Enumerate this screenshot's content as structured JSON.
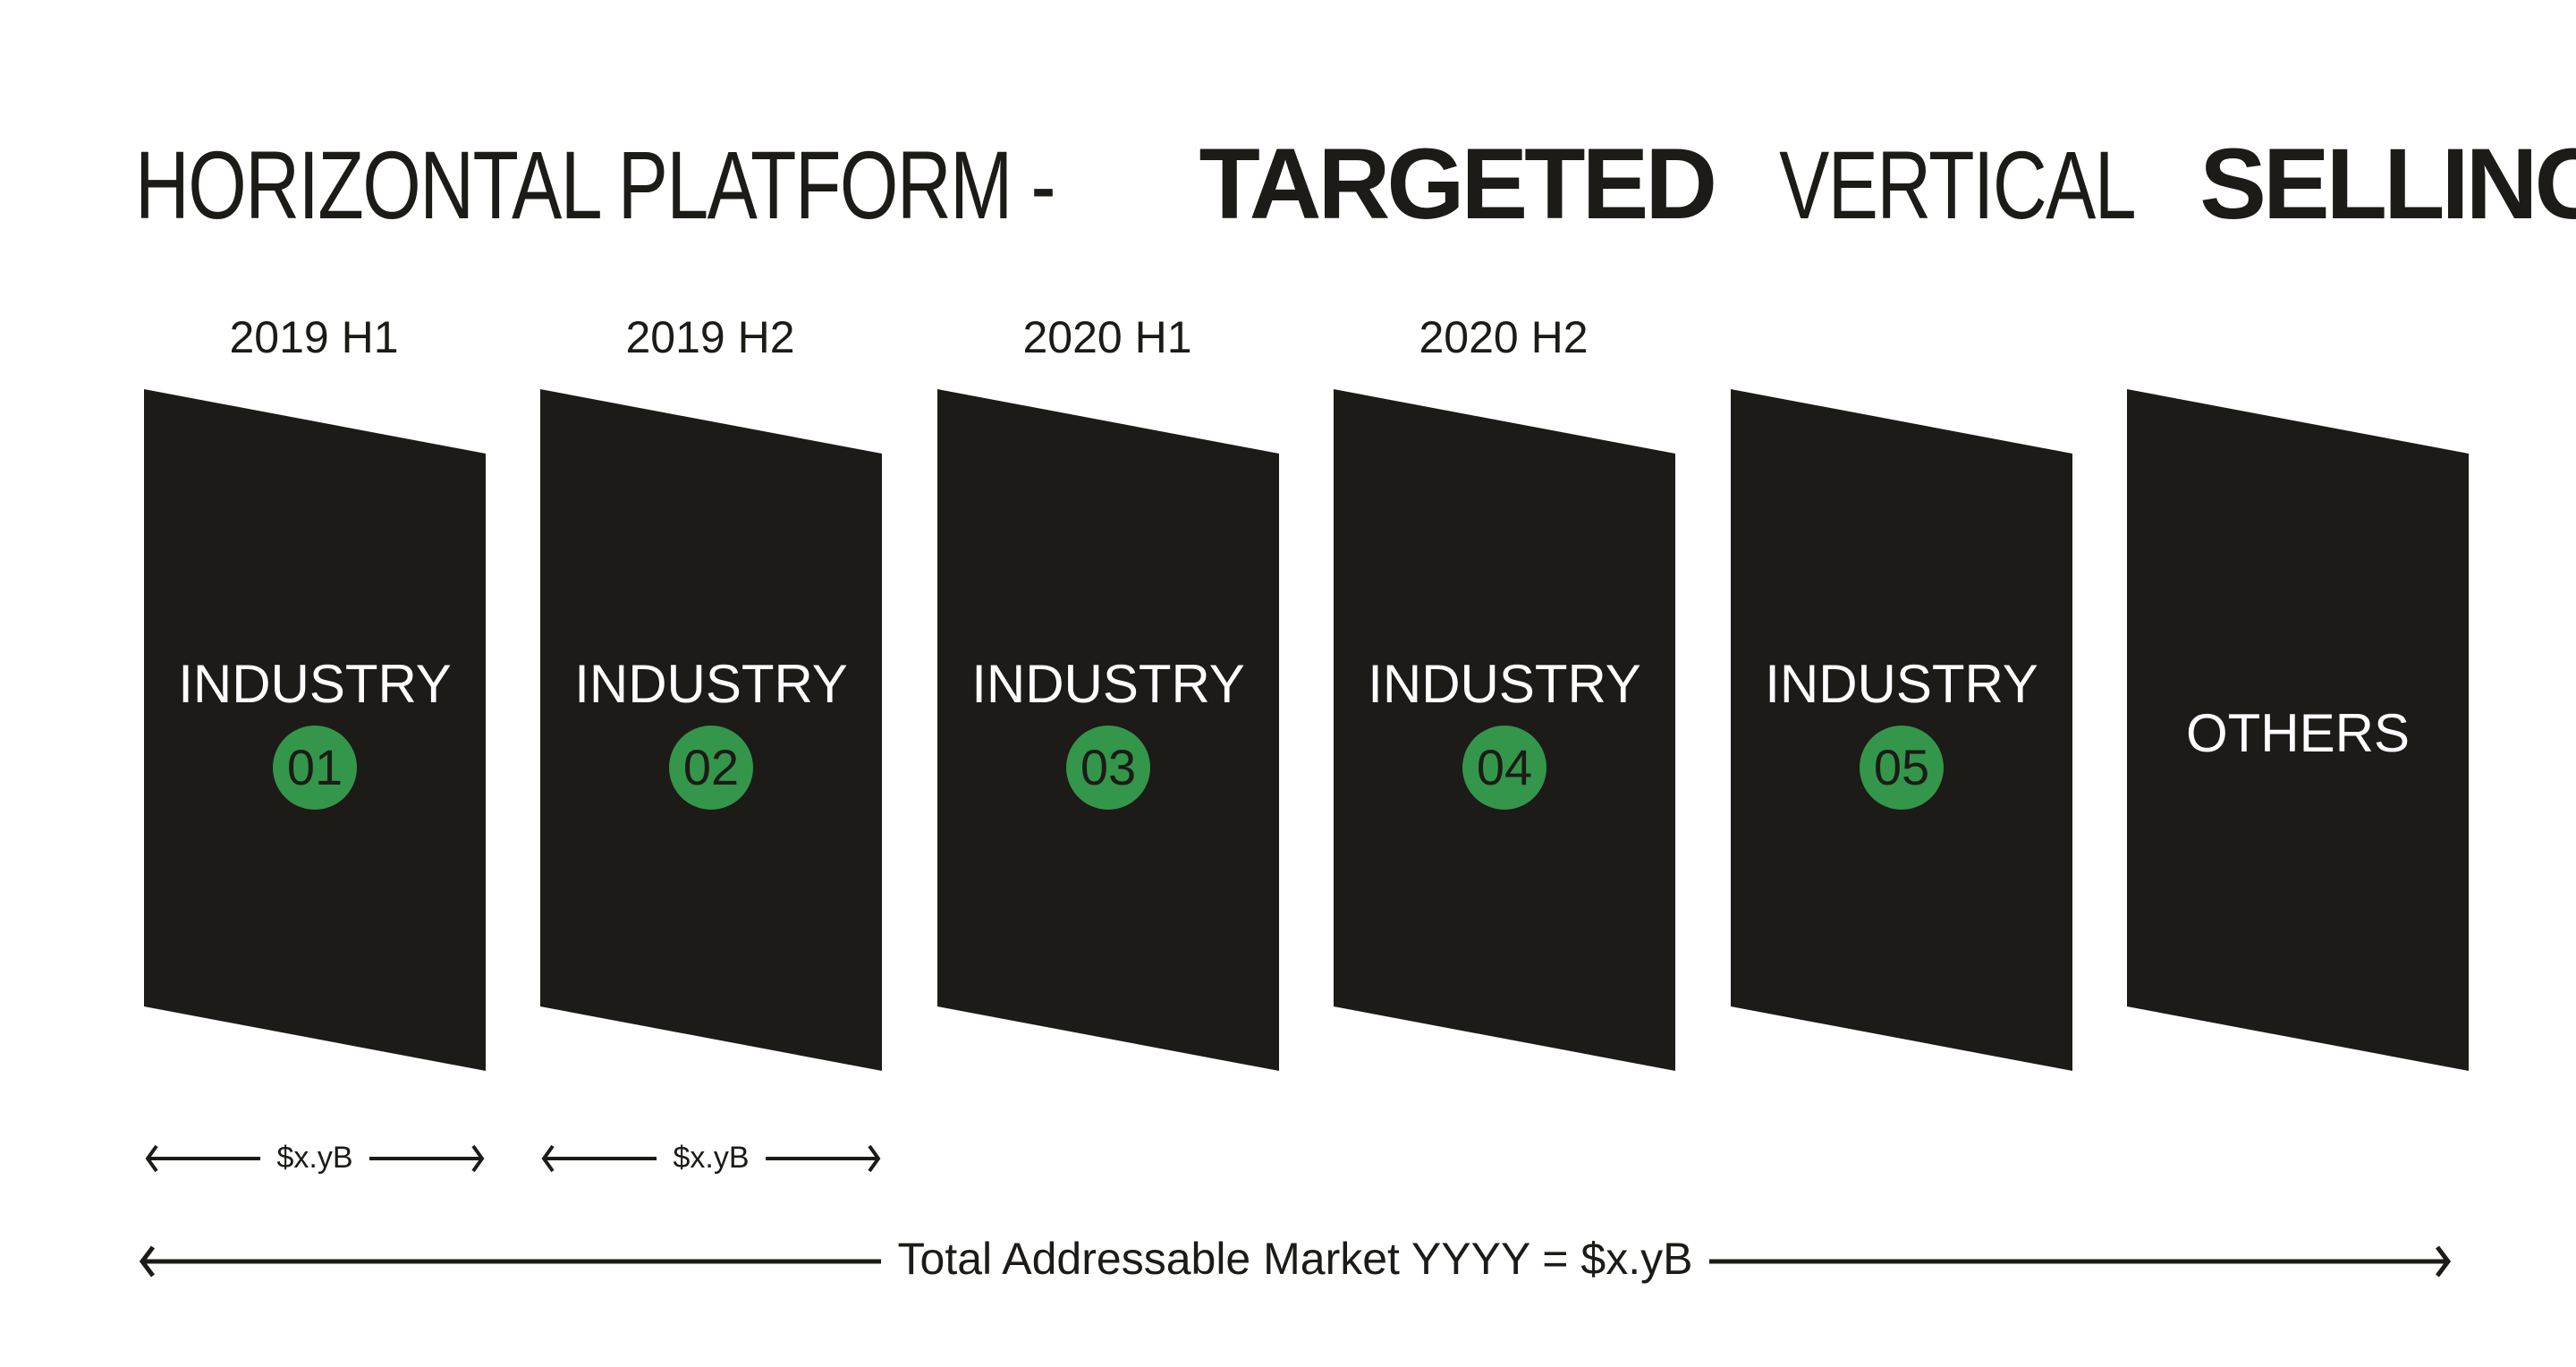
{
  "title": {
    "part1": "HORIZONTAL PLATFORM -",
    "part2": "TARGETED",
    "part3": "VERTICAL",
    "part4": "SELLING"
  },
  "periods": [
    "2019 H1",
    "2019 H2",
    "2020 H1",
    "2020 H2"
  ],
  "panels": [
    {
      "label": "INDUSTRY",
      "number": "01"
    },
    {
      "label": "INDUSTRY",
      "number": "02"
    },
    {
      "label": "INDUSTRY",
      "number": "03"
    },
    {
      "label": "INDUSTRY",
      "number": "04"
    },
    {
      "label": "INDUSTRY",
      "number": "05"
    },
    {
      "label": "OTHERS"
    }
  ],
  "segment_markets": [
    "$x.yB",
    "$x.yB"
  ],
  "total_market": "Total Addressable Market YYYY = $x.yB",
  "colors": {
    "panel": "#1c1b17",
    "badge": "#34964a",
    "text": "#1c1b17"
  }
}
